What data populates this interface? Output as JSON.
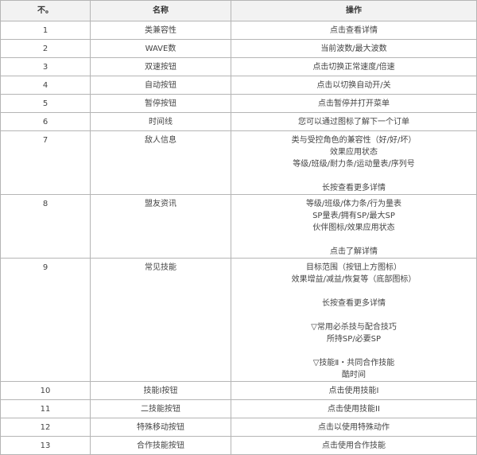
{
  "table": {
    "headers": [
      "不。",
      "名称",
      "操作"
    ],
    "rows": [
      {
        "no": "1",
        "name": "类兼容性",
        "action": [
          "点击查看详情"
        ]
      },
      {
        "no": "2",
        "name": "WAVE数",
        "action": [
          "当前波数/最大波数"
        ]
      },
      {
        "no": "3",
        "name": "双速按钮",
        "action": [
          "点击切换正常速度/倍速"
        ]
      },
      {
        "no": "4",
        "name": "自动按钮",
        "action": [
          "点击以切换自动开/关"
        ]
      },
      {
        "no": "5",
        "name": "暂停按钮",
        "action": [
          "点击暂停并打开菜单"
        ]
      },
      {
        "no": "6",
        "name": "时间线",
        "action": [
          "您可以通过图标了解下一个订单"
        ]
      },
      {
        "no": "7",
        "name": "敌人信息",
        "action": [
          "类与受控角色的兼容性（好/好/坏）",
          "效果应用状态",
          "等级/班级/耐力条/运动量表/序列号",
          "",
          "长按查看更多详情"
        ]
      },
      {
        "no": "8",
        "name": "盟友资讯",
        "action": [
          "等级/班级/体力条/行为量表",
          "SP量表/拥有SP/最大SP",
          "伙伴图标/效果应用状态",
          "",
          "点击了解详情"
        ]
      },
      {
        "no": "9",
        "name": "常见技能",
        "action": [
          "目标范围（按钮上方图标）",
          "效果增益/减益/恢复等（底部图标）",
          "",
          "长按查看更多详情",
          "",
          "▽常用必杀技与配合技巧",
          "所持SP/必要SP",
          "",
          "▽技能Ⅱ・共同合作技能",
          "酷时间"
        ]
      },
      {
        "no": "10",
        "name": "技能Ⅰ按钮",
        "action": [
          "点击使用技能Ⅰ"
        ]
      },
      {
        "no": "11",
        "name": "二技能按钮",
        "action": [
          "点击使用技能II"
        ]
      },
      {
        "no": "12",
        "name": "特殊移动按钮",
        "action": [
          "点击以使用特殊动作"
        ]
      },
      {
        "no": "13",
        "name": "合作技能按钮",
        "action": [
          "点击使用合作技能"
        ]
      }
    ]
  }
}
